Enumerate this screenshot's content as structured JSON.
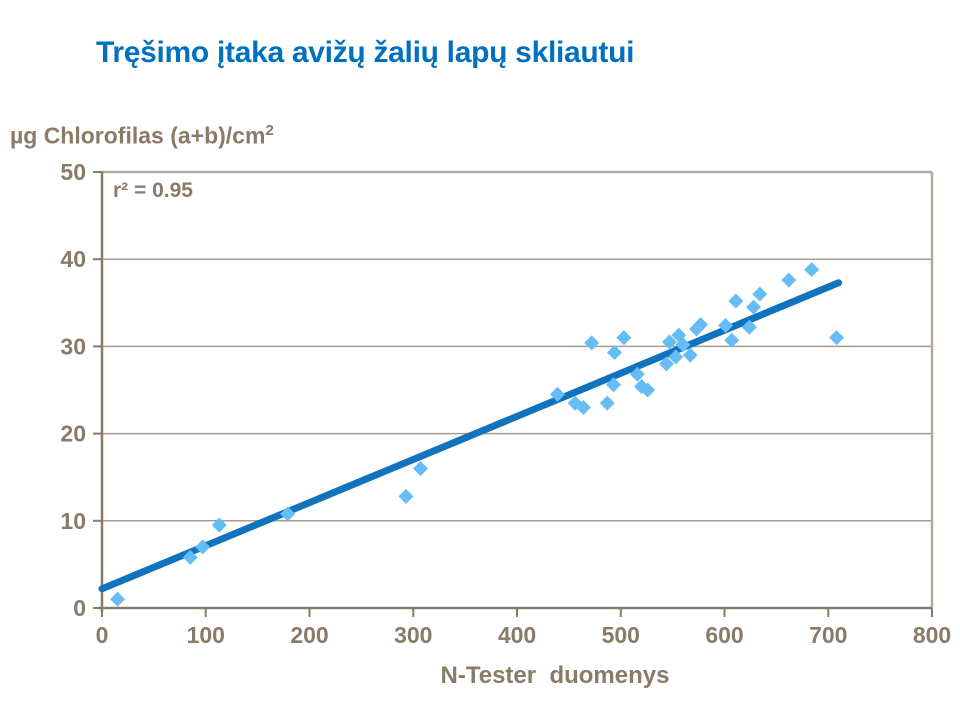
{
  "slide": {
    "title": "Tręšimo įtaka avižų žalių lapų skliautui"
  },
  "chart_data": {
    "type": "scatter",
    "title": "Tręšimo įtaka avižų žalių lapų skliautui",
    "xlabel": "N-Tester  duomenys",
    "ylabel": "µg Chlorofilas (a+b)/cm²",
    "ylabel_base": "µg Chlorofilas (a+b)/cm",
    "ylabel_sup": "2",
    "annotation": "r² = 0.95",
    "xlim": [
      0,
      800
    ],
    "ylim": [
      0,
      50
    ],
    "x_ticks": [
      0,
      100,
      200,
      300,
      400,
      500,
      600,
      700,
      800
    ],
    "y_ticks": [
      0,
      10,
      20,
      30,
      40,
      50
    ],
    "grid": "horizontal",
    "legend": "none",
    "points": [
      [
        15,
        1.0
      ],
      [
        85,
        5.8
      ],
      [
        97,
        7.0
      ],
      [
        113,
        9.5
      ],
      [
        179,
        10.8
      ],
      [
        293,
        12.8
      ],
      [
        307,
        16.0
      ],
      [
        439,
        24.5
      ],
      [
        456,
        23.5
      ],
      [
        464,
        23.0
      ],
      [
        472,
        30.4
      ],
      [
        487,
        23.5
      ],
      [
        493,
        25.6
      ],
      [
        494,
        29.3
      ],
      [
        503,
        31.0
      ],
      [
        516,
        26.8
      ],
      [
        520,
        25.4
      ],
      [
        526,
        25.0
      ],
      [
        544,
        28.0
      ],
      [
        547,
        30.5
      ],
      [
        553,
        28.8
      ],
      [
        556,
        31.3
      ],
      [
        560,
        30.2
      ],
      [
        567,
        29.0
      ],
      [
        573,
        32.0
      ],
      [
        577,
        32.5
      ],
      [
        601,
        32.4
      ],
      [
        607,
        30.7
      ],
      [
        611,
        35.2
      ],
      [
        624,
        32.2
      ],
      [
        628,
        34.5
      ],
      [
        634,
        36.0
      ],
      [
        662,
        37.6
      ],
      [
        684,
        38.8
      ],
      [
        708,
        31.0
      ]
    ],
    "trendline": {
      "x1": 0,
      "y1": 2.2,
      "x2": 710,
      "y2": 37.3
    },
    "colors": {
      "title": "#0070C0",
      "text": "#8A7A67",
      "axis": "#8A7A67",
      "grid": "#A89C8D",
      "border": "#B2A89D",
      "marker": "#66BCF5",
      "trend": "#1173BE",
      "background": "#FFFFFF"
    }
  }
}
